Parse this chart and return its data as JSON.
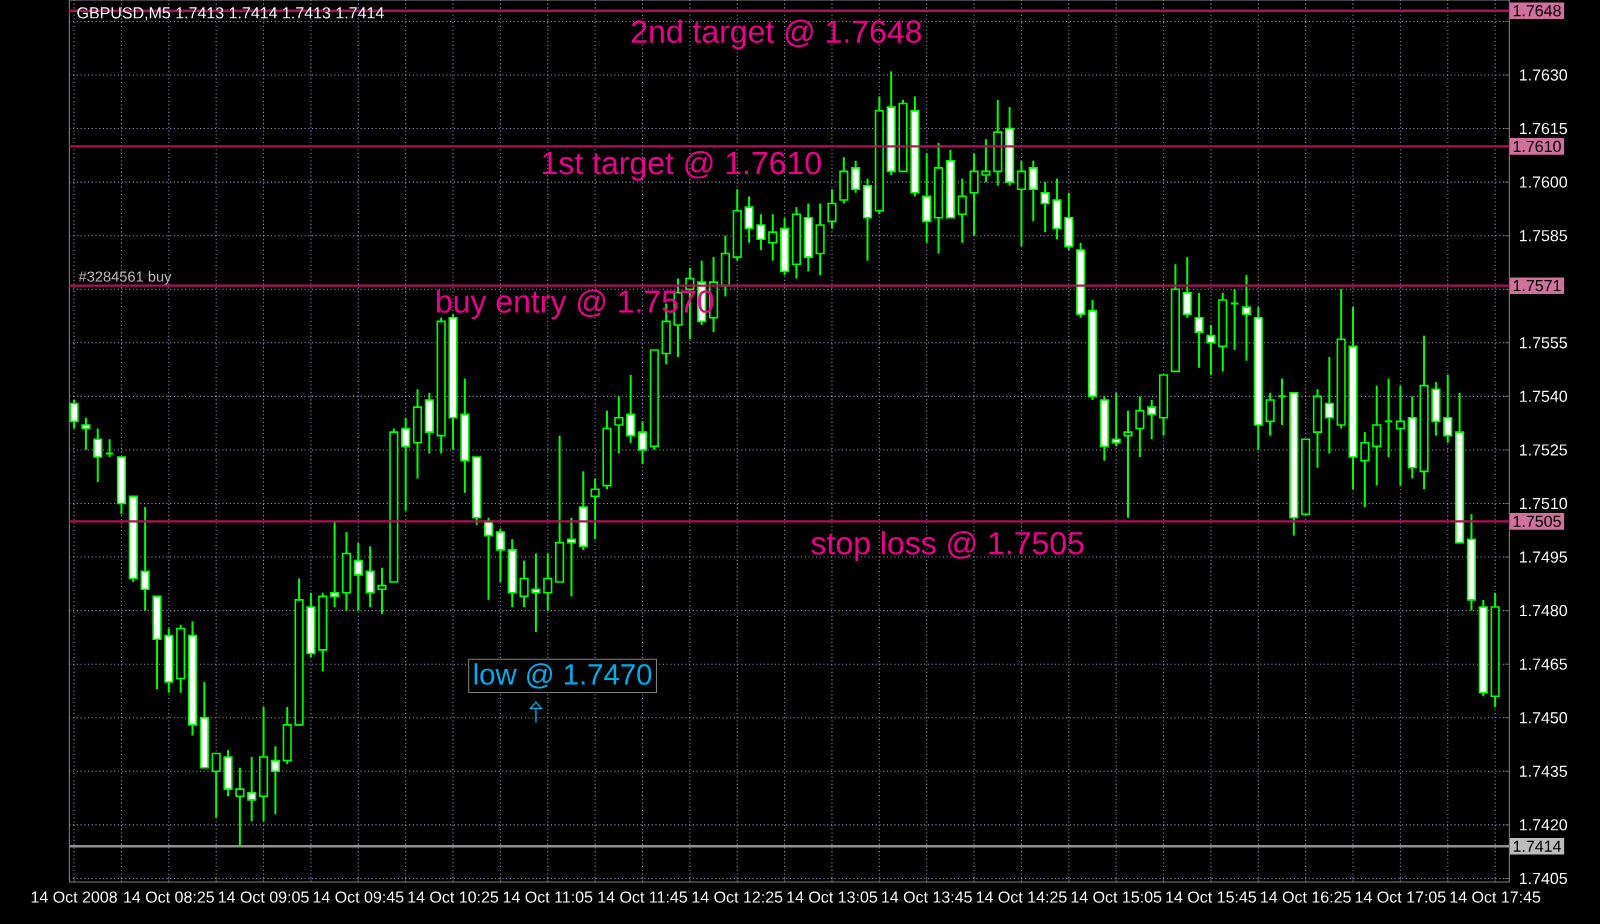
{
  "chart_data": {
    "type": "candlestick",
    "title": "GBPUSD,M5  1.7413 1.7414 1.7413 1.7414",
    "color": "#00ff00",
    "x": [
      "2008-10-14T07:45",
      "2008-10-14T07:50",
      "2008-10-14T07:55",
      "2008-10-14T08:00",
      "2008-10-14T08:05",
      "2008-10-14T08:10",
      "2008-10-14T08:15",
      "2008-10-14T08:20",
      "2008-10-14T08:25",
      "2008-10-14T08:30",
      "2008-10-14T08:35",
      "2008-10-14T08:40",
      "2008-10-14T08:45",
      "2008-10-14T08:50",
      "2008-10-14T08:55",
      "2008-10-14T09:00",
      "2008-10-14T09:05",
      "2008-10-14T09:10",
      "2008-10-14T09:15",
      "2008-10-14T09:20",
      "2008-10-14T09:25",
      "2008-10-14T09:30",
      "2008-10-14T09:35",
      "2008-10-14T09:40",
      "2008-10-14T09:45",
      "2008-10-14T09:50",
      "2008-10-14T09:55",
      "2008-10-14T10:00",
      "2008-10-14T10:05",
      "2008-10-14T10:10",
      "2008-10-14T10:15",
      "2008-10-14T10:20",
      "2008-10-14T10:25",
      "2008-10-14T10:30",
      "2008-10-14T10:35",
      "2008-10-14T10:40",
      "2008-10-14T10:45",
      "2008-10-14T10:50",
      "2008-10-14T10:55",
      "2008-10-14T11:00",
      "2008-10-14T11:05",
      "2008-10-14T11:10",
      "2008-10-14T11:15",
      "2008-10-14T11:20",
      "2008-10-14T11:25",
      "2008-10-14T11:30",
      "2008-10-14T11:35",
      "2008-10-14T11:40",
      "2008-10-14T11:45",
      "2008-10-14T11:50",
      "2008-10-14T11:55",
      "2008-10-14T12:00",
      "2008-10-14T12:05",
      "2008-10-14T12:10",
      "2008-10-14T12:15",
      "2008-10-14T12:20",
      "2008-10-14T12:25",
      "2008-10-14T12:30",
      "2008-10-14T12:35",
      "2008-10-14T12:40",
      "2008-10-14T12:45",
      "2008-10-14T12:50",
      "2008-10-14T12:55",
      "2008-10-14T13:00",
      "2008-10-14T13:05",
      "2008-10-14T13:10",
      "2008-10-14T13:15",
      "2008-10-14T13:20",
      "2008-10-14T13:25",
      "2008-10-14T13:30",
      "2008-10-14T13:35",
      "2008-10-14T13:40",
      "2008-10-14T13:45",
      "2008-10-14T13:50",
      "2008-10-14T13:55",
      "2008-10-14T14:00",
      "2008-10-14T14:05",
      "2008-10-14T14:10",
      "2008-10-14T14:15",
      "2008-10-14T14:20",
      "2008-10-14T14:25",
      "2008-10-14T14:30",
      "2008-10-14T14:35",
      "2008-10-14T14:40",
      "2008-10-14T14:45",
      "2008-10-14T14:50",
      "2008-10-14T14:55",
      "2008-10-14T15:00",
      "2008-10-14T15:05",
      "2008-10-14T15:10",
      "2008-10-14T15:15",
      "2008-10-14T15:20",
      "2008-10-14T15:25",
      "2008-10-14T15:30",
      "2008-10-14T15:35",
      "2008-10-14T15:40",
      "2008-10-14T15:45",
      "2008-10-14T15:50",
      "2008-10-14T15:55",
      "2008-10-14T16:00",
      "2008-10-14T16:05",
      "2008-10-14T16:10",
      "2008-10-14T16:15",
      "2008-10-14T16:20",
      "2008-10-14T16:25",
      "2008-10-14T16:30",
      "2008-10-14T16:35",
      "2008-10-14T16:40",
      "2008-10-14T16:45",
      "2008-10-14T16:50",
      "2008-10-14T16:55",
      "2008-10-14T17:00",
      "2008-10-14T17:05",
      "2008-10-14T17:10",
      "2008-10-14T17:15",
      "2008-10-14T17:20",
      "2008-10-14T17:25",
      "2008-10-14T17:30",
      "2008-10-14T17:35",
      "2008-10-14T17:40",
      "2008-10-14T17:45"
    ],
    "ohlc": [
      [
        1.7538,
        1.7539,
        1.7531,
        1.7533
      ],
      [
        1.7532,
        1.7534,
        1.7525,
        1.7531
      ],
      [
        1.7528,
        1.7531,
        1.7516,
        1.7523
      ],
      [
        1.7524,
        1.7528,
        1.7523,
        1.7524
      ],
      [
        1.7523,
        1.7523,
        1.7507,
        1.751
      ],
      [
        1.7512,
        1.7512,
        1.7488,
        1.7489
      ],
      [
        1.7491,
        1.7509,
        1.748,
        1.7486
      ],
      [
        1.7484,
        1.7484,
        1.7458,
        1.7472
      ],
      [
        1.7473,
        1.7475,
        1.7457,
        1.746
      ],
      [
        1.7461,
        1.7476,
        1.7457,
        1.7475
      ],
      [
        1.7473,
        1.7477,
        1.7445,
        1.7448
      ],
      [
        1.745,
        1.746,
        1.7436,
        1.7436
      ],
      [
        1.7435,
        1.744,
        1.7422,
        1.744
      ],
      [
        1.7439,
        1.7441,
        1.7428,
        1.743
      ],
      [
        1.7428,
        1.7436,
        1.7414,
        1.743
      ],
      [
        1.7429,
        1.7439,
        1.7421,
        1.7427
      ],
      [
        1.7428,
        1.7453,
        1.7421,
        1.7439
      ],
      [
        1.7438,
        1.7442,
        1.7423,
        1.7435
      ],
      [
        1.7438,
        1.7453,
        1.7437,
        1.7448
      ],
      [
        1.7448,
        1.7489,
        1.7448,
        1.7483
      ],
      [
        1.7481,
        1.7485,
        1.7467,
        1.7468
      ],
      [
        1.7469,
        1.7485,
        1.7463,
        1.7484
      ],
      [
        1.7485,
        1.7505,
        1.7481,
        1.7484
      ],
      [
        1.7485,
        1.7502,
        1.748,
        1.7496
      ],
      [
        1.7494,
        1.7499,
        1.748,
        1.749
      ],
      [
        1.7491,
        1.7498,
        1.7481,
        1.7485
      ],
      [
        1.7486,
        1.7492,
        1.7479,
        1.7487
      ],
      [
        1.7488,
        1.7531,
        1.7488,
        1.753
      ],
      [
        1.7531,
        1.7534,
        1.7508,
        1.7526
      ],
      [
        1.7527,
        1.7542,
        1.7517,
        1.7537
      ],
      [
        1.7539,
        1.7541,
        1.7524,
        1.753
      ],
      [
        1.7529,
        1.7562,
        1.7524,
        1.7561
      ],
      [
        1.7562,
        1.7563,
        1.7525,
        1.7534
      ],
      [
        1.7535,
        1.7545,
        1.7513,
        1.7522
      ],
      [
        1.7523,
        1.7523,
        1.7504,
        1.7506
      ],
      [
        1.7505,
        1.7506,
        1.7483,
        1.7501
      ],
      [
        1.7502,
        1.7503,
        1.7488,
        1.7497
      ],
      [
        1.7497,
        1.75,
        1.7481,
        1.7485
      ],
      [
        1.7484,
        1.7494,
        1.7481,
        1.7489
      ],
      [
        1.7486,
        1.7496,
        1.7474,
        1.7485
      ],
      [
        1.7485,
        1.7496,
        1.748,
        1.7489
      ],
      [
        1.7488,
        1.7529,
        1.7488,
        1.7499
      ],
      [
        1.75,
        1.7506,
        1.7484,
        1.7499
      ],
      [
        1.7509,
        1.7519,
        1.7497,
        1.7498
      ],
      [
        1.7512,
        1.7517,
        1.75,
        1.7514
      ],
      [
        1.7515,
        1.7536,
        1.7514,
        1.7531
      ],
      [
        1.7532,
        1.754,
        1.7524,
        1.7534
      ],
      [
        1.7535,
        1.7546,
        1.7527,
        1.7529
      ],
      [
        1.753,
        1.7533,
        1.7521,
        1.7525
      ],
      [
        1.7526,
        1.7553,
        1.7525,
        1.7553
      ],
      [
        1.7552,
        1.7566,
        1.7549,
        1.7561
      ],
      [
        1.756,
        1.7573,
        1.7551,
        1.7569
      ],
      [
        1.757,
        1.7576,
        1.7556,
        1.7573
      ],
      [
        1.7572,
        1.7578,
        1.756,
        1.7561
      ],
      [
        1.7562,
        1.7579,
        1.7558,
        1.7572
      ],
      [
        1.7571,
        1.7585,
        1.7568,
        1.758
      ],
      [
        1.7579,
        1.7598,
        1.7578,
        1.7592
      ],
      [
        1.7593,
        1.7596,
        1.7583,
        1.7587
      ],
      [
        1.7588,
        1.7591,
        1.7581,
        1.7584
      ],
      [
        1.7583,
        1.7591,
        1.7578,
        1.7586
      ],
      [
        1.7587,
        1.759,
        1.7574,
        1.7575
      ],
      [
        1.7577,
        1.7593,
        1.7573,
        1.7591
      ],
      [
        1.759,
        1.7594,
        1.7575,
        1.7579
      ],
      [
        1.758,
        1.7594,
        1.7574,
        1.7588
      ],
      [
        1.7589,
        1.7598,
        1.7587,
        1.7594
      ],
      [
        1.7595,
        1.7607,
        1.7594,
        1.7603
      ],
      [
        1.7604,
        1.7606,
        1.7597,
        1.7598
      ],
      [
        1.7599,
        1.7601,
        1.7578,
        1.759
      ],
      [
        1.7592,
        1.7624,
        1.7591,
        1.762
      ],
      [
        1.7621,
        1.7631,
        1.7602,
        1.7603
      ],
      [
        1.7603,
        1.7623,
        1.7603,
        1.7622
      ],
      [
        1.762,
        1.7624,
        1.7596,
        1.7597
      ],
      [
        1.7596,
        1.7608,
        1.7583,
        1.7589
      ],
      [
        1.759,
        1.7611,
        1.758,
        1.7604
      ],
      [
        1.7606,
        1.7609,
        1.759,
        1.759
      ],
      [
        1.7591,
        1.7601,
        1.7583,
        1.7596
      ],
      [
        1.7597,
        1.7608,
        1.7585,
        1.7603
      ],
      [
        1.7602,
        1.7612,
        1.76,
        1.7603
      ],
      [
        1.7603,
        1.7623,
        1.7599,
        1.7614
      ],
      [
        1.7615,
        1.7621,
        1.7599,
        1.76
      ],
      [
        1.7598,
        1.7606,
        1.7582,
        1.7603
      ],
      [
        1.7604,
        1.7606,
        1.7589,
        1.7598
      ],
      [
        1.7597,
        1.76,
        1.7586,
        1.7594
      ],
      [
        1.7595,
        1.7601,
        1.7584,
        1.7587
      ],
      [
        1.759,
        1.7597,
        1.7581,
        1.7582
      ],
      [
        1.7581,
        1.7583,
        1.7562,
        1.7563
      ],
      [
        1.7564,
        1.7567,
        1.7539,
        1.754
      ],
      [
        1.7539,
        1.754,
        1.7522,
        1.7526
      ],
      [
        1.7528,
        1.7541,
        1.7526,
        1.7527
      ],
      [
        1.7529,
        1.7536,
        1.7506,
        1.753
      ],
      [
        1.7531,
        1.754,
        1.7523,
        1.7536
      ],
      [
        1.7537,
        1.7539,
        1.7528,
        1.7535
      ],
      [
        1.7534,
        1.7546,
        1.7529,
        1.7546
      ],
      [
        1.7547,
        1.7577,
        1.7547,
        1.757
      ],
      [
        1.7569,
        1.7579,
        1.7562,
        1.7563
      ],
      [
        1.7562,
        1.7569,
        1.7548,
        1.7558
      ],
      [
        1.7557,
        1.756,
        1.7546,
        1.7555
      ],
      [
        1.7554,
        1.7569,
        1.7547,
        1.7567
      ],
      [
        1.7566,
        1.757,
        1.7553,
        1.7566
      ],
      [
        1.7565,
        1.7574,
        1.755,
        1.7563
      ],
      [
        1.7562,
        1.7565,
        1.7525,
        1.7532
      ],
      [
        1.7533,
        1.7541,
        1.7529,
        1.7539
      ],
      [
        1.754,
        1.7545,
        1.7532,
        1.754
      ],
      [
        1.7541,
        1.7541,
        1.7501,
        1.7506
      ],
      [
        1.7507,
        1.7528,
        1.7507,
        1.7528
      ],
      [
        1.753,
        1.7542,
        1.752,
        1.754
      ],
      [
        1.7538,
        1.7551,
        1.7524,
        1.7534
      ],
      [
        1.7532,
        1.757,
        1.7531,
        1.7556
      ],
      [
        1.7554,
        1.7565,
        1.7514,
        1.7523
      ],
      [
        1.7522,
        1.753,
        1.7509,
        1.7527
      ],
      [
        1.7526,
        1.7543,
        1.7515,
        1.7532
      ],
      [
        1.7533,
        1.7545,
        1.7523,
        1.7533
      ],
      [
        1.7531,
        1.7543,
        1.7515,
        1.7533
      ],
      [
        1.7534,
        1.754,
        1.7517,
        1.752
      ],
      [
        1.7519,
        1.7557,
        1.7514,
        1.7543
      ],
      [
        1.7542,
        1.7544,
        1.7529,
        1.7533
      ],
      [
        1.7534,
        1.7546,
        1.7527,
        1.7529
      ],
      [
        1.753,
        1.7541,
        1.7499,
        1.7499
      ],
      [
        1.75,
        1.7507,
        1.748,
        1.7483
      ],
      [
        1.7481,
        1.7483,
        1.7456,
        1.7457
      ],
      [
        1.7456,
        1.7485,
        1.7453,
        1.7481
      ]
    ],
    "xlim": [
      "2008-10-14T07:43",
      "2008-10-14T17:51"
    ],
    "ylim": [
      1.7404,
      1.7651
    ],
    "xticks": [
      {
        "value": "2008-10-14T07:45",
        "label": "14 Oct 2008"
      },
      {
        "value": "2008-10-14T08:05",
        "label": null
      },
      {
        "value": "2008-10-14T08:25",
        "label": "14 Oct 08:25"
      },
      {
        "value": "2008-10-14T08:45",
        "label": null
      },
      {
        "value": "2008-10-14T09:05",
        "label": "14 Oct 09:05"
      },
      {
        "value": "2008-10-14T09:25",
        "label": null
      },
      {
        "value": "2008-10-14T09:45",
        "label": "14 Oct 09:45"
      },
      {
        "value": "2008-10-14T10:05",
        "label": null
      },
      {
        "value": "2008-10-14T10:25",
        "label": "14 Oct 10:25"
      },
      {
        "value": "2008-10-14T10:45",
        "label": null
      },
      {
        "value": "2008-10-14T11:05",
        "label": "14 Oct 11:05"
      },
      {
        "value": "2008-10-14T11:25",
        "label": null
      },
      {
        "value": "2008-10-14T11:45",
        "label": "14 Oct 11:45"
      },
      {
        "value": "2008-10-14T12:05",
        "label": null
      },
      {
        "value": "2008-10-14T12:25",
        "label": "14 Oct 12:25"
      },
      {
        "value": "2008-10-14T12:45",
        "label": null
      },
      {
        "value": "2008-10-14T13:05",
        "label": "14 Oct 13:05"
      },
      {
        "value": "2008-10-14T13:25",
        "label": null
      },
      {
        "value": "2008-10-14T13:45",
        "label": "14 Oct 13:45"
      },
      {
        "value": "2008-10-14T14:05",
        "label": null
      },
      {
        "value": "2008-10-14T14:25",
        "label": "14 Oct 14:25"
      },
      {
        "value": "2008-10-14T14:45",
        "label": null
      },
      {
        "value": "2008-10-14T15:05",
        "label": "14 Oct 15:05"
      },
      {
        "value": "2008-10-14T15:25",
        "label": null
      },
      {
        "value": "2008-10-14T15:45",
        "label": "14 Oct 15:45"
      },
      {
        "value": "2008-10-14T16:05",
        "label": null
      },
      {
        "value": "2008-10-14T16:25",
        "label": "14 Oct 16:25"
      },
      {
        "value": "2008-10-14T16:45",
        "label": null
      },
      {
        "value": "2008-10-14T17:05",
        "label": "14 Oct 17:05"
      },
      {
        "value": "2008-10-14T17:25",
        "label": null
      },
      {
        "value": "2008-10-14T17:45",
        "label": "14 Oct 17:45"
      }
    ],
    "yticks": [
      {
        "value": 1.7405,
        "label": "1.7405"
      },
      {
        "value": 1.742,
        "label": "1.7420"
      },
      {
        "value": 1.7435,
        "label": "1.7435"
      },
      {
        "value": 1.745,
        "label": "1.7450"
      },
      {
        "value": 1.7465,
        "label": "1.7465"
      },
      {
        "value": 1.748,
        "label": "1.7480"
      },
      {
        "value": 1.7495,
        "label": "1.7495"
      },
      {
        "value": 1.751,
        "label": "1.7510"
      },
      {
        "value": 1.7525,
        "label": "1.7525"
      },
      {
        "value": 1.754,
        "label": "1.7540"
      },
      {
        "value": 1.7555,
        "label": "1.7555"
      },
      {
        "value": 1.757,
        "label": null
      },
      {
        "value": 1.7585,
        "label": "1.7585"
      },
      {
        "value": 1.76,
        "label": "1.7600"
      },
      {
        "value": 1.7615,
        "label": "1.7615"
      },
      {
        "value": 1.763,
        "label": "1.7630"
      },
      {
        "value": 1.7645,
        "label": null
      }
    ],
    "grid": true,
    "ref_lines": [
      {
        "axis": "y",
        "value": 1.7648,
        "label": "1.7648",
        "color": "#b0105a"
      },
      {
        "axis": "y",
        "value": 1.761,
        "label": "1.7610",
        "color": "#b0105a"
      },
      {
        "axis": "y",
        "value": 1.7571,
        "label": "1.7571",
        "color": "#b0105a"
      },
      {
        "axis": "y",
        "value": 1.7505,
        "label": "1.7505",
        "color": "#b0105a"
      },
      {
        "axis": "y",
        "value": 1.7414,
        "label": "1.7414",
        "color": "#909090"
      }
    ],
    "annotations": [
      "2nd target @ 1.7648",
      "1st target @ 1.7610",
      "buy entry @ 1.7570",
      "stop loss @ 1.7505",
      {
        "text": "low @ 1.7470",
        "x": "2008-10-14T11:00",
        "y": 1.7474
      },
      "#3284561 buy"
    ]
  }
}
